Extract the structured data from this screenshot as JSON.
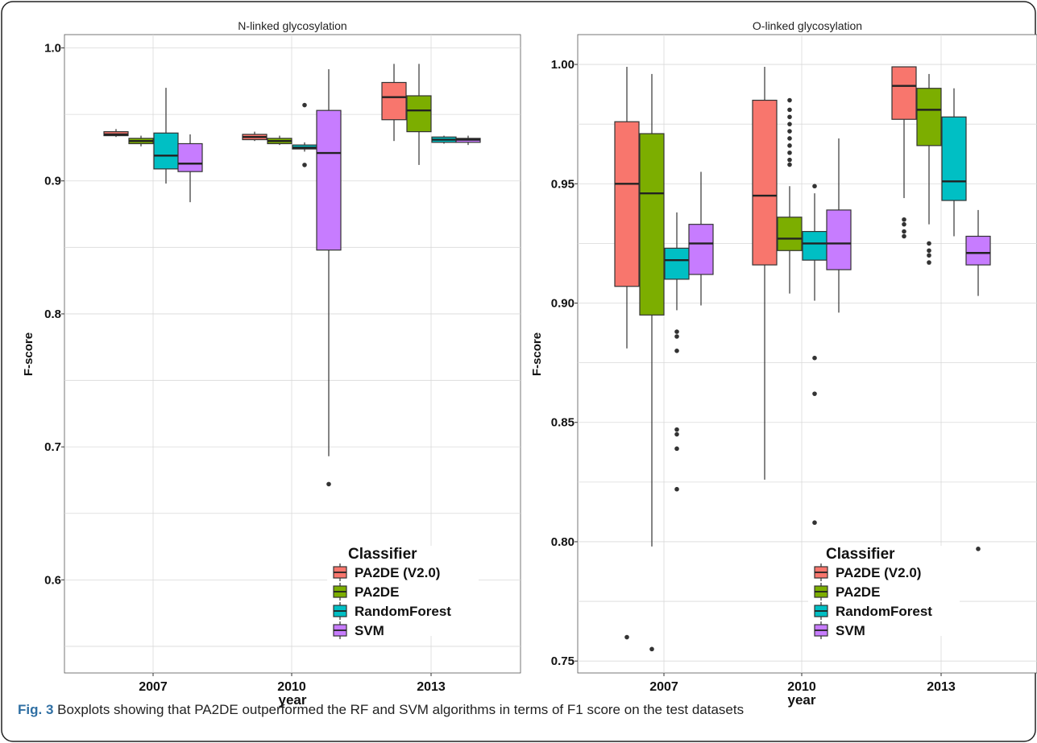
{
  "legend_title": "Classifier",
  "colors": {
    "PA2DE (V2.0)": "#F8766D",
    "PA2DE": "#7CAE00",
    "RandomForest": "#00BFC4",
    "SVM": "#C77CFF",
    "grid": "#d9d9d9",
    "caption_label": "#2f6fa3"
  },
  "caption": {
    "label": "Fig. 3",
    "text": " Boxplots showing that PA2DE outperformed the RF and SVM algorithms in terms of F1 score on the test datasets"
  },
  "chart_data": [
    {
      "type": "box",
      "title": "N-linked glycosylation",
      "xlabel": "year",
      "ylabel": "F-score",
      "categories": [
        "2007",
        "2010",
        "2013"
      ],
      "ylim": [
        0.53,
        1.01
      ],
      "yticks": [
        0.6,
        0.7,
        0.8,
        0.9,
        1.0
      ],
      "ytick_labels": [
        "0.6",
        "0.7",
        "0.8",
        "0.9",
        "1.0"
      ],
      "grid": true,
      "legend_position": "bottom-right",
      "series": [
        {
          "name": "PA2DE (V2.0)",
          "boxes": [
            {
              "min": 0.933,
              "q1": 0.934,
              "median": 0.935,
              "q3": 0.937,
              "max": 0.939,
              "outliers": []
            },
            {
              "min": 0.93,
              "q1": 0.931,
              "median": 0.933,
              "q3": 0.935,
              "max": 0.937,
              "outliers": []
            },
            {
              "min": 0.93,
              "q1": 0.946,
              "median": 0.963,
              "q3": 0.974,
              "max": 0.988,
              "outliers": []
            }
          ]
        },
        {
          "name": "PA2DE",
          "boxes": [
            {
              "min": 0.926,
              "q1": 0.928,
              "median": 0.93,
              "q3": 0.932,
              "max": 0.934,
              "outliers": []
            },
            {
              "min": 0.927,
              "q1": 0.928,
              "median": 0.93,
              "q3": 0.932,
              "max": 0.934,
              "outliers": []
            },
            {
              "min": 0.912,
              "q1": 0.937,
              "median": 0.953,
              "q3": 0.964,
              "max": 0.988,
              "outliers": []
            }
          ]
        },
        {
          "name": "RandomForest",
          "boxes": [
            {
              "min": 0.898,
              "q1": 0.909,
              "median": 0.919,
              "q3": 0.936,
              "max": 0.97,
              "outliers": []
            },
            {
              "min": 0.922,
              "q1": 0.924,
              "median": 0.925,
              "q3": 0.927,
              "max": 0.929,
              "outliers": [
                0.957,
                0.912
              ]
            },
            {
              "min": 0.928,
              "q1": 0.929,
              "median": 0.931,
              "q3": 0.933,
              "max": 0.934,
              "outliers": []
            }
          ]
        },
        {
          "name": "SVM",
          "boxes": [
            {
              "min": 0.884,
              "q1": 0.907,
              "median": 0.913,
              "q3": 0.928,
              "max": 0.935,
              "outliers": []
            },
            {
              "min": 0.693,
              "q1": 0.848,
              "median": 0.921,
              "q3": 0.953,
              "max": 0.984,
              "outliers": [
                0.672
              ]
            },
            {
              "min": 0.927,
              "q1": 0.929,
              "median": 0.931,
              "q3": 0.932,
              "max": 0.934,
              "outliers": []
            }
          ]
        }
      ]
    },
    {
      "type": "box",
      "title": "O-linked glycosylation",
      "xlabel": "year",
      "ylabel": "F-score",
      "categories": [
        "2007",
        "2010",
        "2013"
      ],
      "ylim": [
        0.745,
        1.0125
      ],
      "yticks": [
        0.75,
        0.8,
        0.85,
        0.9,
        0.95,
        1.0
      ],
      "ytick_labels": [
        "0.75",
        "0.80",
        "0.85",
        "0.90",
        "0.95",
        "1.00"
      ],
      "grid": true,
      "legend_position": "bottom-right",
      "series": [
        {
          "name": "PA2DE (V2.0)",
          "boxes": [
            {
              "min": 0.881,
              "q1": 0.907,
              "median": 0.95,
              "q3": 0.976,
              "max": 0.999,
              "outliers": [
                0.76
              ]
            },
            {
              "min": 0.826,
              "q1": 0.916,
              "median": 0.945,
              "q3": 0.985,
              "max": 0.999,
              "outliers": []
            },
            {
              "min": 0.944,
              "q1": 0.977,
              "median": 0.991,
              "q3": 0.999,
              "max": 0.999,
              "outliers": [
                0.935,
                0.933,
                0.93,
                0.928
              ]
            }
          ]
        },
        {
          "name": "PA2DE",
          "boxes": [
            {
              "min": 0.798,
              "q1": 0.895,
              "median": 0.946,
              "q3": 0.971,
              "max": 0.996,
              "outliers": [
                0.755
              ]
            },
            {
              "min": 0.904,
              "q1": 0.922,
              "median": 0.927,
              "q3": 0.936,
              "max": 0.949,
              "outliers": [
                0.985,
                0.981,
                0.978,
                0.975,
                0.972,
                0.969,
                0.966,
                0.963,
                0.96,
                0.958
              ]
            },
            {
              "min": 0.933,
              "q1": 0.966,
              "median": 0.981,
              "q3": 0.99,
              "max": 0.996,
              "outliers": [
                0.925,
                0.922,
                0.92,
                0.917
              ]
            }
          ]
        },
        {
          "name": "RandomForest",
          "boxes": [
            {
              "min": 0.897,
              "q1": 0.91,
              "median": 0.918,
              "q3": 0.923,
              "max": 0.938,
              "outliers": [
                0.888,
                0.886,
                0.88,
                0.847,
                0.845,
                0.839,
                0.822
              ]
            },
            {
              "min": 0.901,
              "q1": 0.918,
              "median": 0.925,
              "q3": 0.93,
              "max": 0.946,
              "outliers": [
                0.949,
                0.877,
                0.862,
                0.808
              ]
            },
            {
              "min": 0.928,
              "q1": 0.943,
              "median": 0.951,
              "q3": 0.978,
              "max": 0.99,
              "outliers": []
            }
          ]
        },
        {
          "name": "SVM",
          "boxes": [
            {
              "min": 0.899,
              "q1": 0.912,
              "median": 0.925,
              "q3": 0.933,
              "max": 0.955,
              "outliers": []
            },
            {
              "min": 0.896,
              "q1": 0.914,
              "median": 0.925,
              "q3": 0.939,
              "max": 0.969,
              "outliers": []
            },
            {
              "min": 0.903,
              "q1": 0.916,
              "median": 0.921,
              "q3": 0.928,
              "max": 0.939,
              "outliers": [
                0.797
              ]
            }
          ]
        }
      ]
    }
  ]
}
